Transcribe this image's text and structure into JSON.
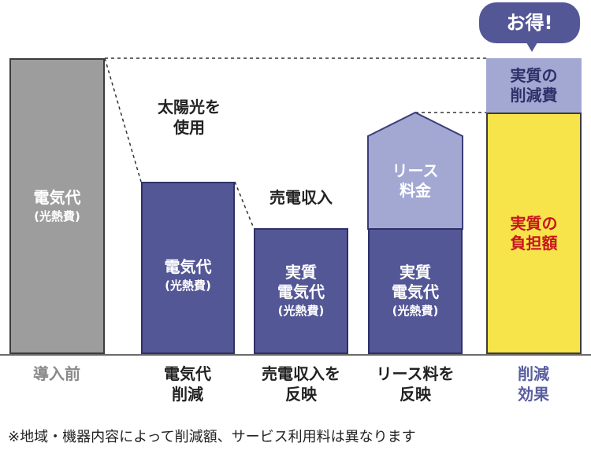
{
  "colors": {
    "gray_bar": "#9e9d9e",
    "navy_bar": "#545796",
    "lavender": "#a3a8d3",
    "yellow": "#f7e34a",
    "red_text": "#c8161d",
    "gray_label": "#8a8a8a",
    "purple_label": "#5a5ea0"
  },
  "bubble": {
    "text": "お得!"
  },
  "bars": {
    "before": {
      "line1": "電気代",
      "line2": "(光熱費)"
    },
    "reduce": {
      "line1": "電気代",
      "line2": "(光熱費)"
    },
    "sell": {
      "line1": "実質",
      "line2": "電気代",
      "line3": "(光熱費)"
    },
    "lease": {
      "line1": "実質",
      "line2": "電気代",
      "line3": "(光熱費)",
      "top1": "リース",
      "top2": "料金"
    },
    "effect": {
      "top1": "実質の",
      "top2": "削減費",
      "main1": "実質の",
      "main2": "負担額"
    }
  },
  "annotations": {
    "solar1": "太陽光を",
    "solar2": "使用",
    "sell_income": "売電収入"
  },
  "columns": {
    "before": {
      "line1": "導入前"
    },
    "reduce": {
      "line1": "電気代",
      "line2": "削減"
    },
    "sell": {
      "line1": "売電収入を",
      "line2": "反映"
    },
    "lease": {
      "line1": "リース料を",
      "line2": "反映"
    },
    "effect": {
      "line1": "削減",
      "line2": "効果"
    }
  },
  "note": "※地域・機器内容によって削減額、サービス利用料は異なります"
}
